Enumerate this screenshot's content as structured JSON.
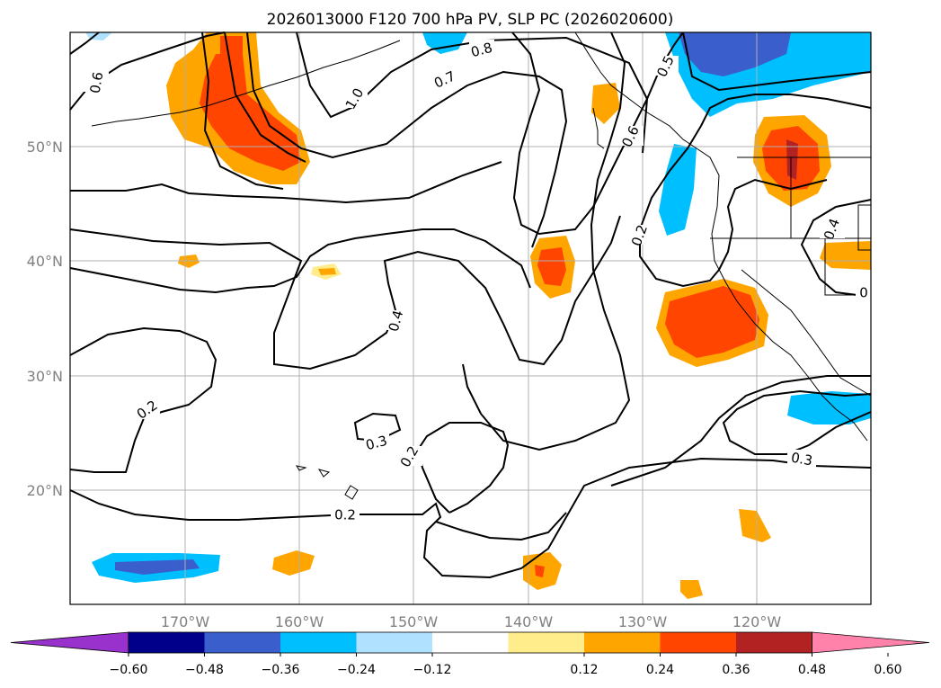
{
  "title": "2026013000 F120 700 hPa PV, SLP PC (2026020600)",
  "lat_labels": [
    "50°N",
    "40°N",
    "30°N",
    "20°N"
  ],
  "lon_labels": [
    "170°W",
    "160°W",
    "150°W",
    "140°W",
    "130°W",
    "120°W"
  ],
  "colorbar": {
    "ticks": [
      "−0.60",
      "−0.48",
      "−0.36",
      "−0.24",
      "−0.12",
      "0.12",
      "0.24",
      "0.36",
      "0.48",
      "0.60"
    ],
    "colors": [
      "#9932cc",
      "#00008b",
      "#3a5fcd",
      "#00bfff",
      "#b0e2ff",
      "#ffffff",
      "#ffec8b",
      "#ffa500",
      "#ff4500",
      "#b22222",
      "#ff82ab"
    ]
  },
  "contour_labels": [
    "0.6",
    "1.0",
    "0.7",
    "0.8",
    "0.5",
    "0.6",
    "0.2",
    "0.4",
    "0.4",
    "0.2",
    "0.3",
    "0.2",
    "0.2",
    "0.3",
    "0"
  ],
  "colors": {
    "coast": "#000000",
    "grid": "#b0b0b0"
  }
}
